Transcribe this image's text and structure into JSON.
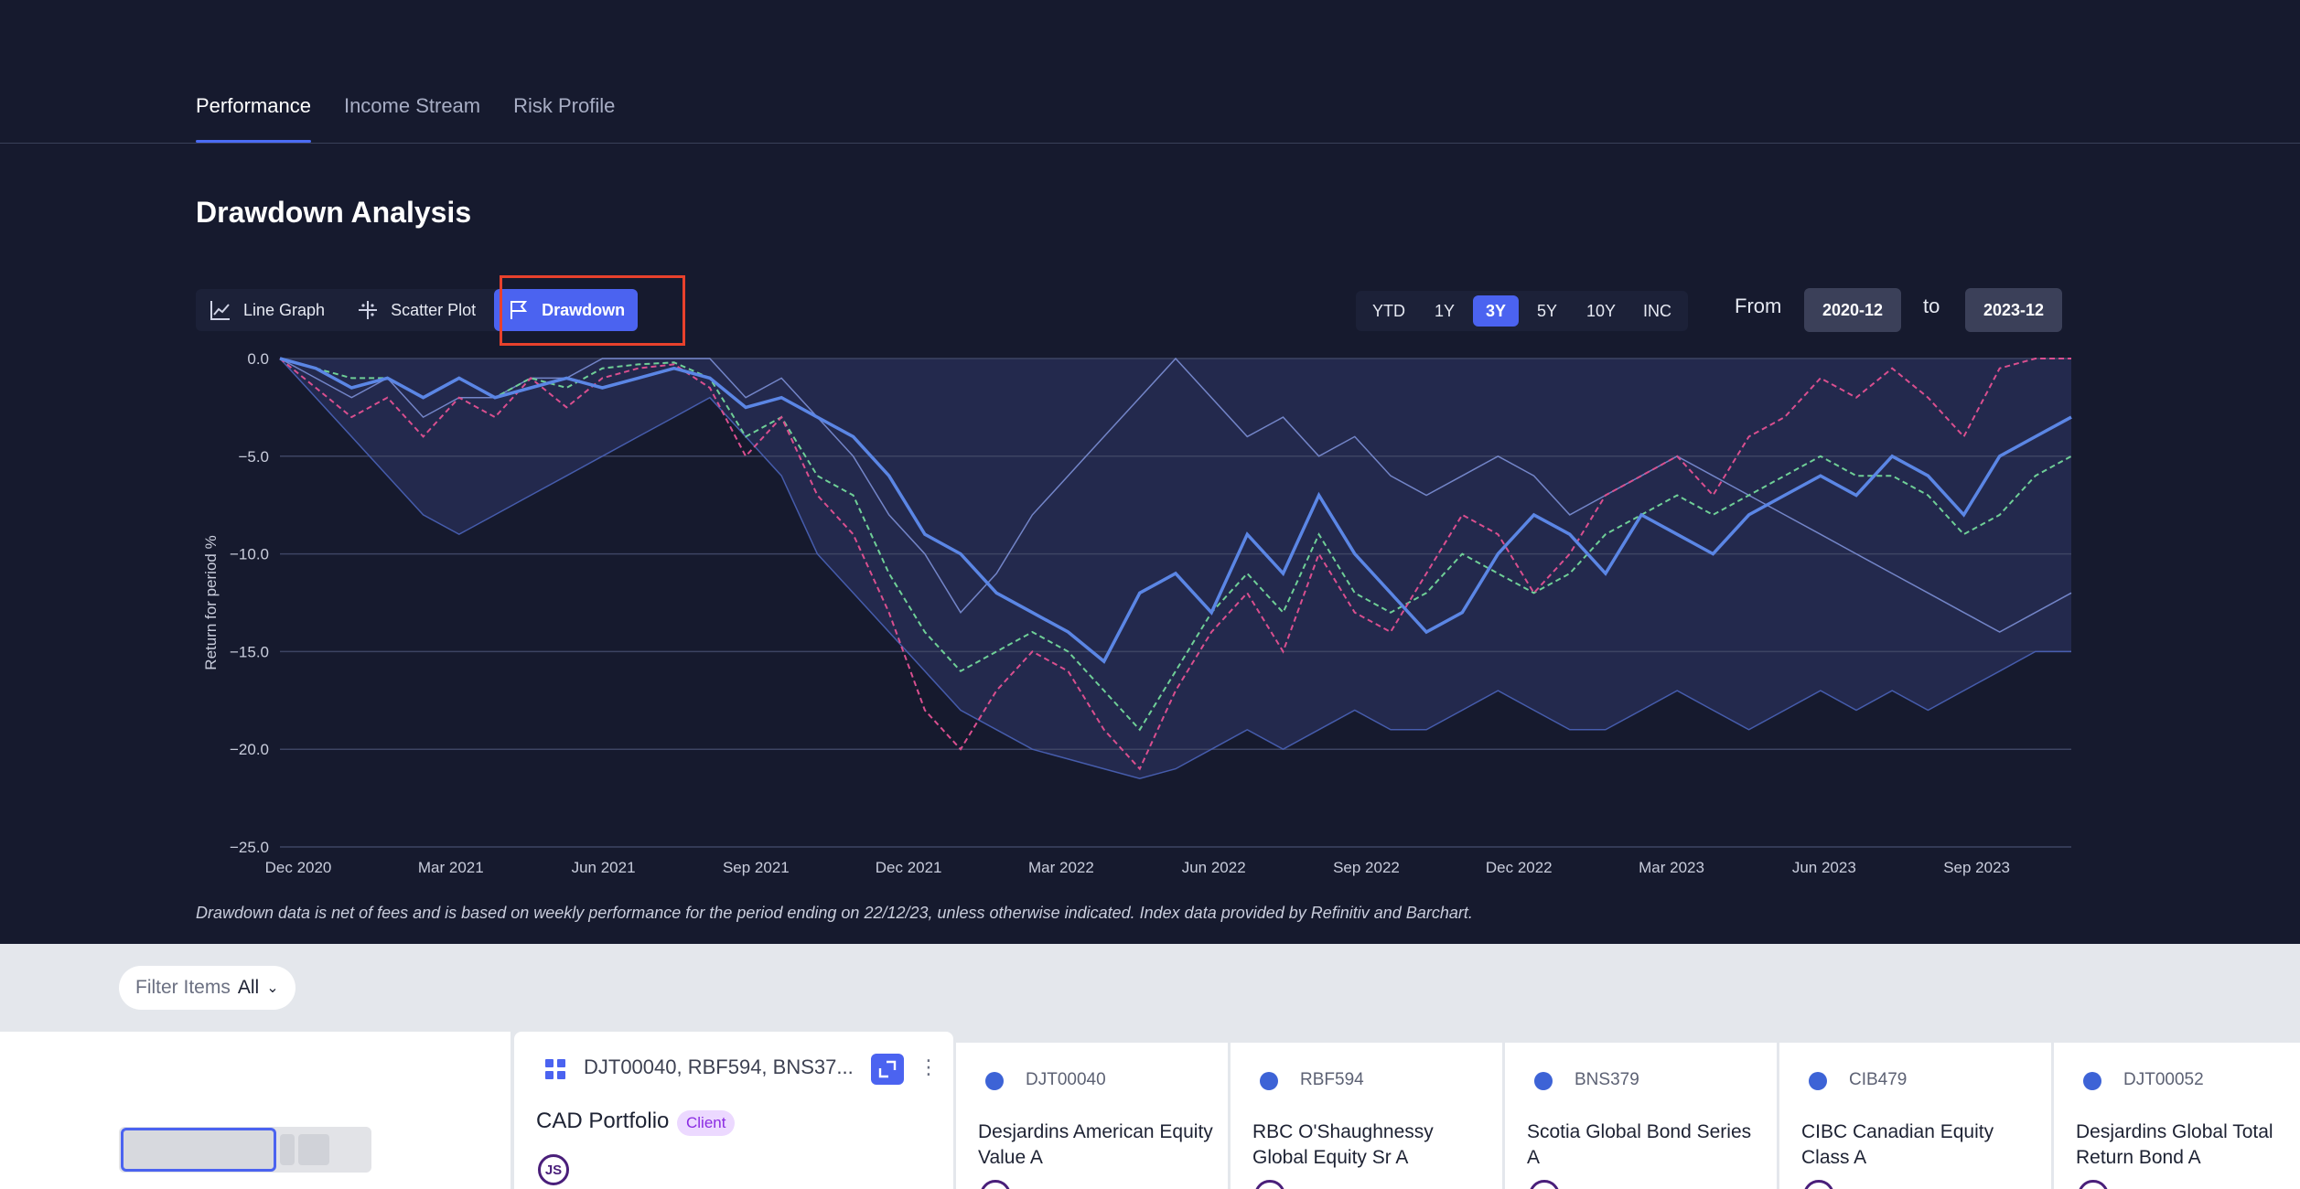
{
  "tabs": [
    "Performance",
    "Income Stream",
    "Risk Profile"
  ],
  "section_title": "Drawdown Analysis",
  "view_toggles": [
    "Line Graph",
    "Scatter Plot",
    "Drawdown"
  ],
  "periods": [
    "YTD",
    "1Y",
    "3Y",
    "5Y",
    "10Y",
    "INC"
  ],
  "selected_period": "3Y",
  "date_range": {
    "from_label": "From",
    "from": "2020-12",
    "to_label": "to",
    "to": "2023-12"
  },
  "footnote": "Drawdown data is net of fees and is based on weekly performance for the period ending on 22/12/23, unless otherwise indicated. Index data provided by Refinitiv and Barchart.",
  "chart_data": {
    "type": "area",
    "ylabel": "Return for period %",
    "ylim": [
      -25,
      0
    ],
    "yticks": [
      "0.0",
      "−5.0",
      "−10.0",
      "−15.0",
      "−20.0",
      "−25.0"
    ],
    "xticks": [
      "Dec 2020",
      "Mar 2021",
      "Jun 2021",
      "Sep 2021",
      "Dec 2021",
      "Mar 2022",
      "Jun 2022",
      "Sep 2022",
      "Dec 2022",
      "Mar 2023",
      "Jun 2023",
      "Sep 2023"
    ],
    "grid": true,
    "series": [
      {
        "color": "#5b86e5",
        "style": "bold",
        "values": [
          0,
          -0.5,
          -1.5,
          -1,
          -2,
          -1,
          -2,
          -1.5,
          -1,
          -1.5,
          -1,
          -0.5,
          -1,
          -2.5,
          -2,
          -3,
          -4,
          -6,
          -9,
          -10,
          -12,
          -13,
          -14,
          -15.5,
          -12,
          -11,
          -13,
          -9,
          -11,
          -7,
          -10,
          -12,
          -14,
          -13,
          -10,
          -8,
          -9,
          -11,
          -8,
          -9,
          -10,
          -8,
          -7,
          -6,
          -7,
          -5,
          -6,
          -8,
          -5,
          -4,
          -3
        ]
      },
      {
        "color": "#d94f8f",
        "style": "dashed",
        "values": [
          0,
          -1.5,
          -3,
          -2,
          -4,
          -2,
          -3,
          -1,
          -2.5,
          -1,
          -0.5,
          -0.3,
          -1.5,
          -5,
          -3,
          -7,
          -9,
          -13,
          -18,
          -20,
          -17,
          -15,
          -16,
          -19,
          -21,
          -17,
          -14,
          -12,
          -15,
          -10,
          -13,
          -14,
          -11,
          -8,
          -9,
          -12,
          -10,
          -7,
          -6,
          -5,
          -7,
          -4,
          -3,
          -1,
          -2,
          -0.5,
          -2,
          -4,
          -0.5,
          0,
          0
        ]
      },
      {
        "color": "#6fcf97",
        "style": "dashed",
        "values": [
          0,
          -0.5,
          -1,
          -1,
          -2,
          -1,
          -2,
          -1,
          -1.5,
          -0.5,
          -0.3,
          -0.2,
          -1,
          -4,
          -3,
          -6,
          -7,
          -11,
          -14,
          -16,
          -15,
          -14,
          -15,
          -17,
          -19,
          -16,
          -13,
          -11,
          -13,
          -9,
          -12,
          -13,
          -12,
          -10,
          -11,
          -12,
          -11,
          -9,
          -8,
          -7,
          -8,
          -7,
          -6,
          -5,
          -6,
          -6,
          -7,
          -9,
          -8,
          -6,
          -5
        ]
      },
      {
        "color": "#4a63b8",
        "style": "thin",
        "values": [
          0,
          -2,
          -4,
          -6,
          -8,
          -9,
          -8,
          -7,
          -6,
          -5,
          -4,
          -3,
          -2,
          -4,
          -6,
          -10,
          -12,
          -14,
          -16,
          -18,
          -19,
          -20,
          -20.5,
          -21,
          -21.5,
          -21,
          -20,
          -19,
          -20,
          -19,
          -18,
          -19,
          -19,
          -18,
          -17,
          -18,
          -19,
          -19,
          -18,
          -17,
          -18,
          -19,
          -18,
          -17,
          -18,
          -17,
          -18,
          -17,
          -16,
          -15,
          -15
        ]
      },
      {
        "color": "#7c8fd6",
        "style": "thin",
        "values": [
          0,
          -1,
          -2,
          -1,
          -3,
          -2,
          -2,
          -1,
          -1,
          0,
          0,
          0,
          0,
          -2,
          -1,
          -3,
          -5,
          -8,
          -10,
          -13,
          -11,
          -8,
          -6,
          -4,
          -2,
          0,
          -2,
          -4,
          -3,
          -5,
          -4,
          -6,
          -7,
          -6,
          -5,
          -6,
          -8,
          -7,
          -6,
          -5,
          -6,
          -7,
          -8,
          -9,
          -10,
          -11,
          -12,
          -13,
          -14,
          -13,
          -12
        ]
      }
    ]
  },
  "filter": {
    "label": "Filter Items",
    "value": "All"
  },
  "portfolio_card": {
    "ids": "DJT00040, RBF594, BNS37...",
    "name": "CAD Portfolio",
    "badge": "Client",
    "avatar": "JS"
  },
  "funds": [
    {
      "code": "DJT00040",
      "name": "Desjardins American Equity Value A"
    },
    {
      "code": "RBF594",
      "name": "RBC O'Shaughnessy Global Equity Sr A"
    },
    {
      "code": "BNS379",
      "name": "Scotia Global Bond Series A"
    },
    {
      "code": "CIB479",
      "name": "CIBC Canadian Equity Class A"
    },
    {
      "code": "DJT00052",
      "name": "Desjardins Global Total Return Bond A"
    }
  ]
}
